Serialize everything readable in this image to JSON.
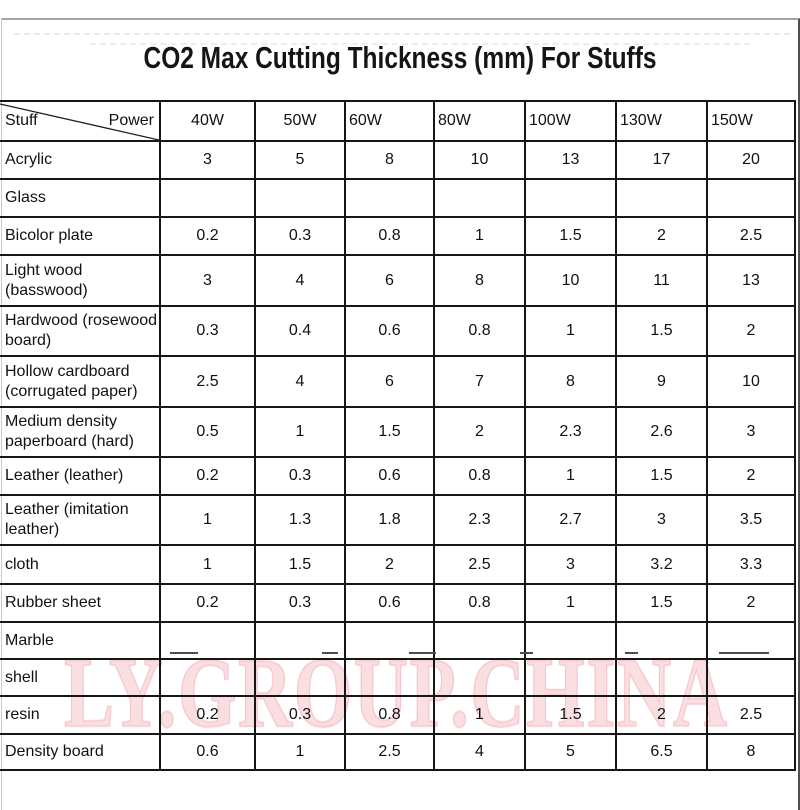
{
  "title": "CO2 Max Cutting Thickness (mm) For Stuffs",
  "watermark": {
    "text": "LY.GROUP.CHINA",
    "color": "#fadfe2",
    "outline_color": "#f5c5cb"
  },
  "table": {
    "corner": {
      "row_label": "Stuff",
      "col_label": "Power"
    },
    "columns": [
      "40W",
      "50W",
      "60W",
      "80W",
      "100W",
      "130W",
      "150W"
    ],
    "rows": [
      {
        "label": "Acrylic",
        "values": [
          "3",
          "5",
          "8",
          "10",
          "13",
          "17",
          "20"
        ]
      },
      {
        "label": "Glass",
        "values": [
          "",
          "",
          "",
          "",
          "",
          "",
          ""
        ]
      },
      {
        "label": "Bicolor plate",
        "values": [
          "0.2",
          "0.3",
          "0.8",
          "1",
          "1.5",
          "2",
          "2.5"
        ]
      },
      {
        "label": "Light wood (basswood)",
        "values": [
          "3",
          "4",
          "6",
          "8",
          "10",
          "11",
          "13"
        ]
      },
      {
        "label": "Hardwood (rosewood board)",
        "values": [
          "0.3",
          "0.4",
          "0.6",
          "0.8",
          "1",
          "1.5",
          "2"
        ]
      },
      {
        "label": "Hollow cardboard (corrugated paper)",
        "values": [
          "2.5",
          "4",
          "6",
          "7",
          "8",
          "9",
          "10"
        ]
      },
      {
        "label": "Medium density paperboard (hard)",
        "values": [
          "0.5",
          "1",
          "1.5",
          "2",
          "2.3",
          "2.6",
          "3"
        ]
      },
      {
        "label": "Leather (leather)",
        "values": [
          "0.2",
          "0.3",
          "0.6",
          "0.8",
          "1",
          "1.5",
          "2"
        ]
      },
      {
        "label": "Leather (imitation leather)",
        "values": [
          "1",
          "1.3",
          "1.8",
          "2.3",
          "2.7",
          "3",
          "3.5"
        ]
      },
      {
        "label": "cloth",
        "values": [
          "1",
          "1.5",
          "2",
          "2.5",
          "3",
          "3.2",
          "3.3"
        ]
      },
      {
        "label": "Rubber sheet",
        "values": [
          "0.2",
          "0.3",
          "0.6",
          "0.8",
          "1",
          "1.5",
          "2"
        ]
      },
      {
        "label": "Marble",
        "values": [
          "",
          "",
          "",
          "",
          "",
          "",
          ""
        ]
      },
      {
        "label": "shell",
        "values": [
          "",
          "",
          "",
          "",
          "",
          "",
          ""
        ]
      },
      {
        "label": "resin",
        "values": [
          "0.2",
          "0.3",
          "0.8",
          "1",
          "1.5",
          "2",
          "2.5"
        ]
      },
      {
        "label": "Density board",
        "values": [
          "0.6",
          "1",
          "2.5",
          "4",
          "5",
          "6.5",
          "8"
        ]
      }
    ]
  },
  "colors": {
    "background": "#ffffff",
    "grid_line": "#161616",
    "text": "#111111",
    "outer_border": "#a3a3a3"
  }
}
